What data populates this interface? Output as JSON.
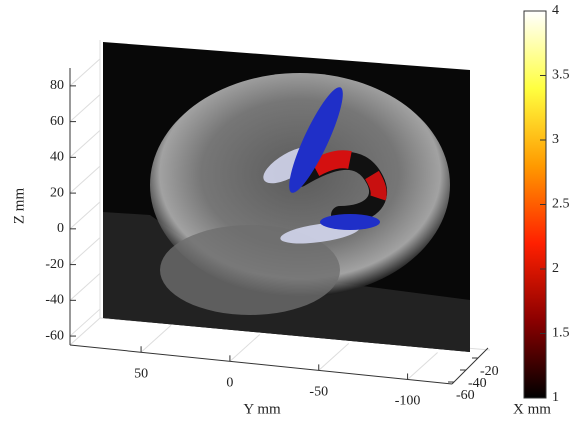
{
  "chart_data": {
    "type": "volume3d",
    "zlabel": "Z mm",
    "ylabel": "Y mm",
    "xlabel": "X mm",
    "zlim": [
      -65,
      90
    ],
    "zticks": [
      80,
      60,
      40,
      20,
      0,
      -20,
      -40,
      -60
    ],
    "ylim": [
      90,
      -125
    ],
    "yticks": [
      50,
      0,
      -50,
      -100
    ],
    "xlim": [
      0,
      -70
    ],
    "xticks": [
      -20,
      -40,
      -60
    ],
    "clim": [
      1,
      4
    ],
    "cticks": [
      1,
      1.5,
      2,
      2.5,
      3,
      3.5,
      4
    ],
    "colormap": [
      "#000000",
      "#8b0000",
      "#ff2000",
      "#ff9a00",
      "#ffff40",
      "#ffffff"
    ],
    "grid": true
  }
}
